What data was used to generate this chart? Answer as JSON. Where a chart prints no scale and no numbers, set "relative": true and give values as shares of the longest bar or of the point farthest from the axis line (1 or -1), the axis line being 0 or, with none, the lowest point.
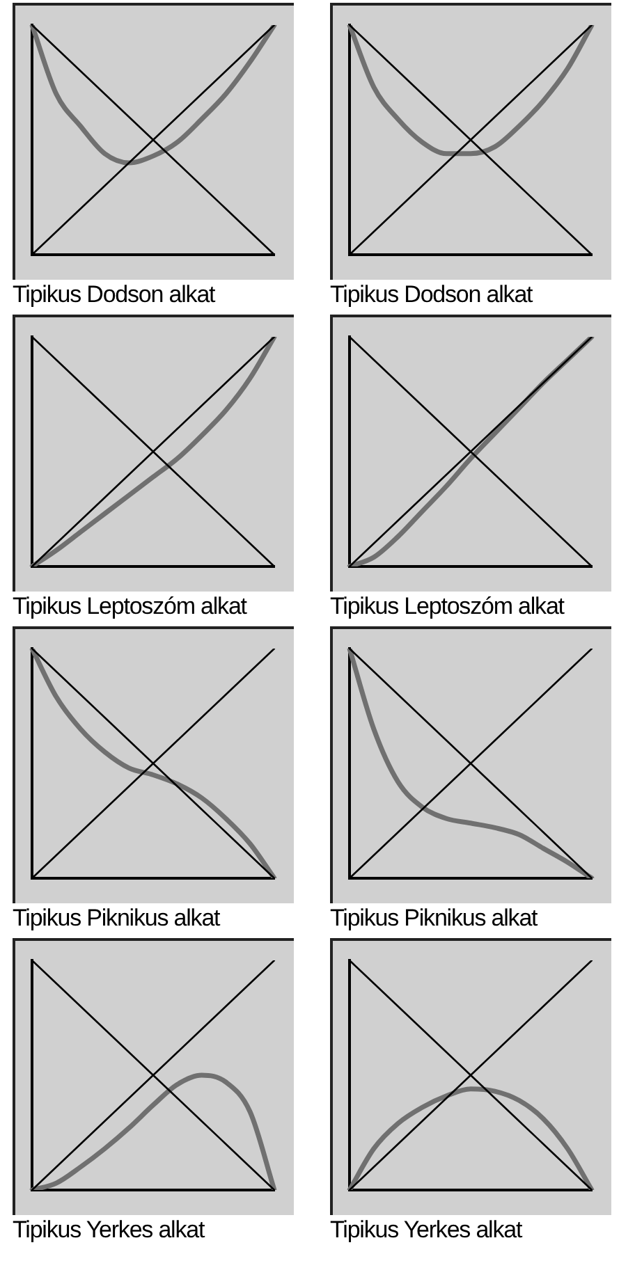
{
  "chart_data": [
    {
      "type": "line",
      "title": "Tipikus Dodson alkat",
      "relative": true,
      "legend": false,
      "grid": false,
      "tick_labels": false,
      "marker": "none",
      "categories": [
        null,
        null,
        null,
        null,
        null,
        null,
        null,
        null,
        null,
        null,
        null
      ],
      "series": [
        {
          "color": "#000000",
          "values": [
            0,
            0.1,
            0.2,
            0.3,
            0.4,
            0.5,
            0.6,
            0.7,
            0.8,
            0.9,
            1
          ]
        },
        {
          "color": "#000000",
          "values": [
            1,
            0.9,
            0.8,
            0.7,
            0.6,
            0.5,
            0.4,
            0.3,
            0.2,
            0.1,
            0
          ]
        },
        {
          "color": "#707070",
          "values": [
            1,
            0.7,
            0.56,
            0.44,
            0.4,
            0.43,
            0.49,
            0.59,
            0.7,
            0.84,
            1
          ]
        }
      ]
    },
    {
      "type": "line",
      "title": "Tipikus Dodson alkat",
      "relative": true,
      "legend": false,
      "grid": false,
      "tick_labels": false,
      "marker": "none",
      "categories": [
        null,
        null,
        null,
        null,
        null,
        null,
        null,
        null,
        null,
        null,
        null
      ],
      "series": [
        {
          "color": "#000000",
          "values": [
            0,
            0.1,
            0.2,
            0.3,
            0.4,
            0.5,
            0.6,
            0.7,
            0.8,
            0.9,
            1
          ]
        },
        {
          "color": "#000000",
          "values": [
            1,
            0.9,
            0.8,
            0.7,
            0.6,
            0.5,
            0.4,
            0.3,
            0.2,
            0.1,
            0
          ]
        },
        {
          "color": "#707070",
          "values": [
            1,
            0.73,
            0.59,
            0.49,
            0.44,
            0.44,
            0.47,
            0.56,
            0.67,
            0.81,
            1
          ]
        }
      ]
    },
    {
      "type": "line",
      "title": "Tipikus Leptoszóm alkat",
      "relative": true,
      "legend": false,
      "grid": false,
      "tick_labels": false,
      "marker": "none",
      "categories": [
        null,
        null,
        null,
        null,
        null,
        null,
        null,
        null,
        null,
        null,
        null
      ],
      "series": [
        {
          "color": "#000000",
          "values": [
            0,
            0.1,
            0.2,
            0.3,
            0.4,
            0.5,
            0.6,
            0.7,
            0.8,
            0.9,
            1
          ]
        },
        {
          "color": "#000000",
          "values": [
            1,
            0.9,
            0.8,
            0.7,
            0.6,
            0.5,
            0.4,
            0.3,
            0.2,
            0.1,
            0
          ]
        },
        {
          "color": "#707070",
          "values": [
            0,
            0.07,
            0.15,
            0.23,
            0.31,
            0.39,
            0.47,
            0.57,
            0.68,
            0.82,
            1
          ]
        }
      ]
    },
    {
      "type": "line",
      "title": "Tipikus Leptoszóm alkat",
      "relative": true,
      "legend": false,
      "grid": false,
      "tick_labels": false,
      "marker": "none",
      "categories": [
        null,
        null,
        null,
        null,
        null,
        null,
        null,
        null,
        null,
        null,
        null
      ],
      "series": [
        {
          "color": "#000000",
          "values": [
            0,
            0.1,
            0.2,
            0.3,
            0.4,
            0.5,
            0.6,
            0.7,
            0.8,
            0.9,
            1
          ]
        },
        {
          "color": "#000000",
          "values": [
            1,
            0.9,
            0.8,
            0.7,
            0.6,
            0.5,
            0.4,
            0.3,
            0.2,
            0.1,
            0
          ]
        },
        {
          "color": "#707070",
          "values": [
            0,
            0.04,
            0.13,
            0.24,
            0.35,
            0.47,
            0.58,
            0.69,
            0.8,
            0.9,
            1
          ]
        }
      ]
    },
    {
      "type": "line",
      "title": "Tipikus Piknikus alkat",
      "relative": true,
      "legend": false,
      "grid": false,
      "tick_labels": false,
      "marker": "none",
      "categories": [
        null,
        null,
        null,
        null,
        null,
        null,
        null,
        null,
        null,
        null,
        null
      ],
      "series": [
        {
          "color": "#000000",
          "values": [
            0,
            0.1,
            0.2,
            0.3,
            0.4,
            0.5,
            0.6,
            0.7,
            0.8,
            0.9,
            1
          ]
        },
        {
          "color": "#000000",
          "values": [
            1,
            0.9,
            0.8,
            0.7,
            0.6,
            0.5,
            0.4,
            0.3,
            0.2,
            0.1,
            0
          ]
        },
        {
          "color": "#707070",
          "values": [
            1,
            0.79,
            0.65,
            0.55,
            0.48,
            0.45,
            0.41,
            0.35,
            0.26,
            0.15,
            0
          ]
        }
      ]
    },
    {
      "type": "line",
      "title": "Tipikus Piknikus alkat",
      "relative": true,
      "legend": false,
      "grid": false,
      "tick_labels": false,
      "marker": "none",
      "categories": [
        null,
        null,
        null,
        null,
        null,
        null,
        null,
        null,
        null,
        null,
        null
      ],
      "series": [
        {
          "color": "#000000",
          "values": [
            0,
            0.1,
            0.2,
            0.3,
            0.4,
            0.5,
            0.6,
            0.7,
            0.8,
            0.9,
            1
          ]
        },
        {
          "color": "#000000",
          "values": [
            1,
            0.9,
            0.8,
            0.7,
            0.6,
            0.5,
            0.4,
            0.3,
            0.2,
            0.1,
            0
          ]
        },
        {
          "color": "#707070",
          "values": [
            1,
            0.65,
            0.42,
            0.31,
            0.26,
            0.24,
            0.22,
            0.19,
            0.13,
            0.07,
            0
          ]
        }
      ]
    },
    {
      "type": "line",
      "title": "Tipikus Yerkes alkat",
      "relative": true,
      "legend": false,
      "grid": false,
      "tick_labels": false,
      "marker": "none",
      "categories": [
        null,
        null,
        null,
        null,
        null,
        null,
        null,
        null,
        null,
        null,
        null
      ],
      "series": [
        {
          "color": "#000000",
          "values": [
            0,
            0.1,
            0.2,
            0.3,
            0.4,
            0.5,
            0.6,
            0.7,
            0.8,
            0.9,
            1
          ]
        },
        {
          "color": "#000000",
          "values": [
            1,
            0.9,
            0.8,
            0.7,
            0.6,
            0.5,
            0.4,
            0.3,
            0.2,
            0.1,
            0
          ]
        },
        {
          "color": "#707070",
          "values": [
            0,
            0.03,
            0.1,
            0.18,
            0.27,
            0.37,
            0.46,
            0.5,
            0.47,
            0.34,
            0
          ]
        }
      ]
    },
    {
      "type": "line",
      "title": "Tipikus Yerkes alkat",
      "relative": true,
      "legend": false,
      "grid": false,
      "tick_labels": false,
      "marker": "none",
      "categories": [
        null,
        null,
        null,
        null,
        null,
        null,
        null,
        null,
        null,
        null,
        null
      ],
      "series": [
        {
          "color": "#000000",
          "values": [
            0,
            0.1,
            0.2,
            0.3,
            0.4,
            0.5,
            0.6,
            0.7,
            0.8,
            0.9,
            1
          ]
        },
        {
          "color": "#000000",
          "values": [
            1,
            0.9,
            0.8,
            0.7,
            0.6,
            0.5,
            0.4,
            0.3,
            0.2,
            0.1,
            0
          ]
        },
        {
          "color": "#707070",
          "values": [
            0,
            0.18,
            0.29,
            0.36,
            0.41,
            0.44,
            0.43,
            0.39,
            0.31,
            0.18,
            0
          ]
        }
      ]
    }
  ]
}
